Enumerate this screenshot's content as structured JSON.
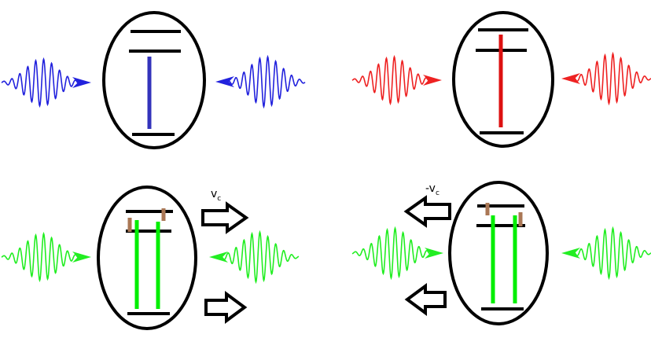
{
  "labels": {
    "velocity": "v",
    "neg_velocity": "-v",
    "velocity_subscript": "c"
  },
  "colors": {
    "outline": "#000000",
    "blue_pulse": "#2222dd",
    "blue_transition": "#3333bb",
    "red_pulse": "#ee2222",
    "red_transition": "#dd1111",
    "green_pulse": "#22ee22",
    "green_transition": "#00ee00",
    "brown_shift": "#aa7755"
  },
  "panels": [
    {
      "name": "top-left",
      "pulse": "blue",
      "transition": "blue",
      "arrows": "none"
    },
    {
      "name": "top-right",
      "pulse": "red",
      "transition": "red",
      "arrows": "none"
    },
    {
      "name": "bottom-left",
      "pulse": "green",
      "transition": "green",
      "arrows": "right",
      "shift": "brown"
    },
    {
      "name": "bottom-right",
      "pulse": "green",
      "transition": "green",
      "arrows": "left",
      "shift": "brown"
    }
  ]
}
